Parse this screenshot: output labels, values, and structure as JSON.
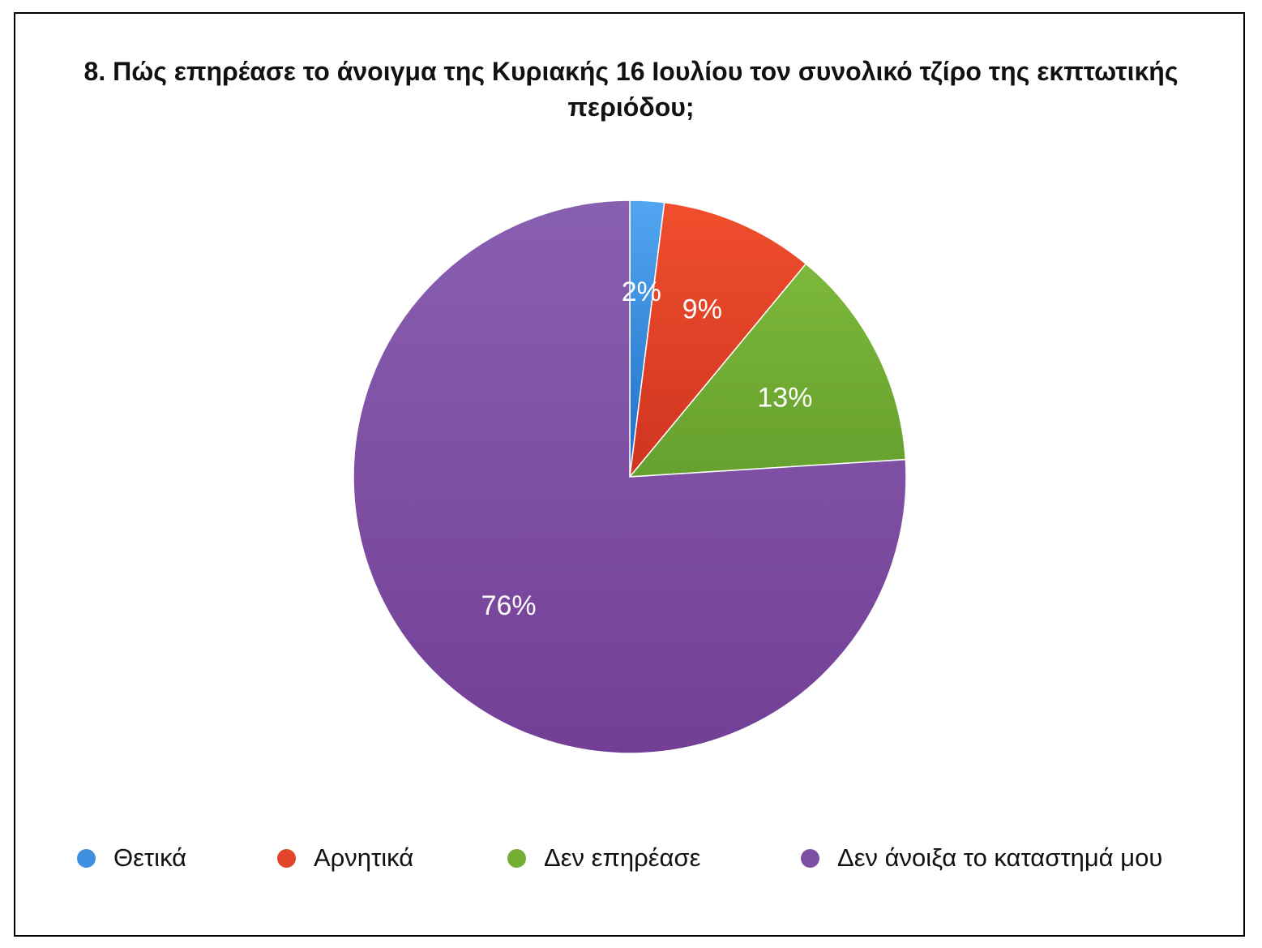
{
  "chart_data": {
    "type": "pie",
    "title": "8. Πώς επηρέασε το άνοιγμα της Κυριακής 16 Ιουλίου τον συνολικό τζίρο της εκπτωτικής περιόδου;",
    "categories": [
      "Θετικά",
      "Αρνητικά",
      "Δεν επηρέασε",
      "Δεν άνοιξα το καταστημά μου"
    ],
    "values": [
      2,
      9,
      13,
      76
    ],
    "data_labels": [
      "2%",
      "9%",
      "13%",
      "76%"
    ],
    "colors": [
      "#3d8fe0",
      "#e2452c",
      "#74ae35",
      "#7d4fa3"
    ],
    "legend_position": "bottom"
  }
}
